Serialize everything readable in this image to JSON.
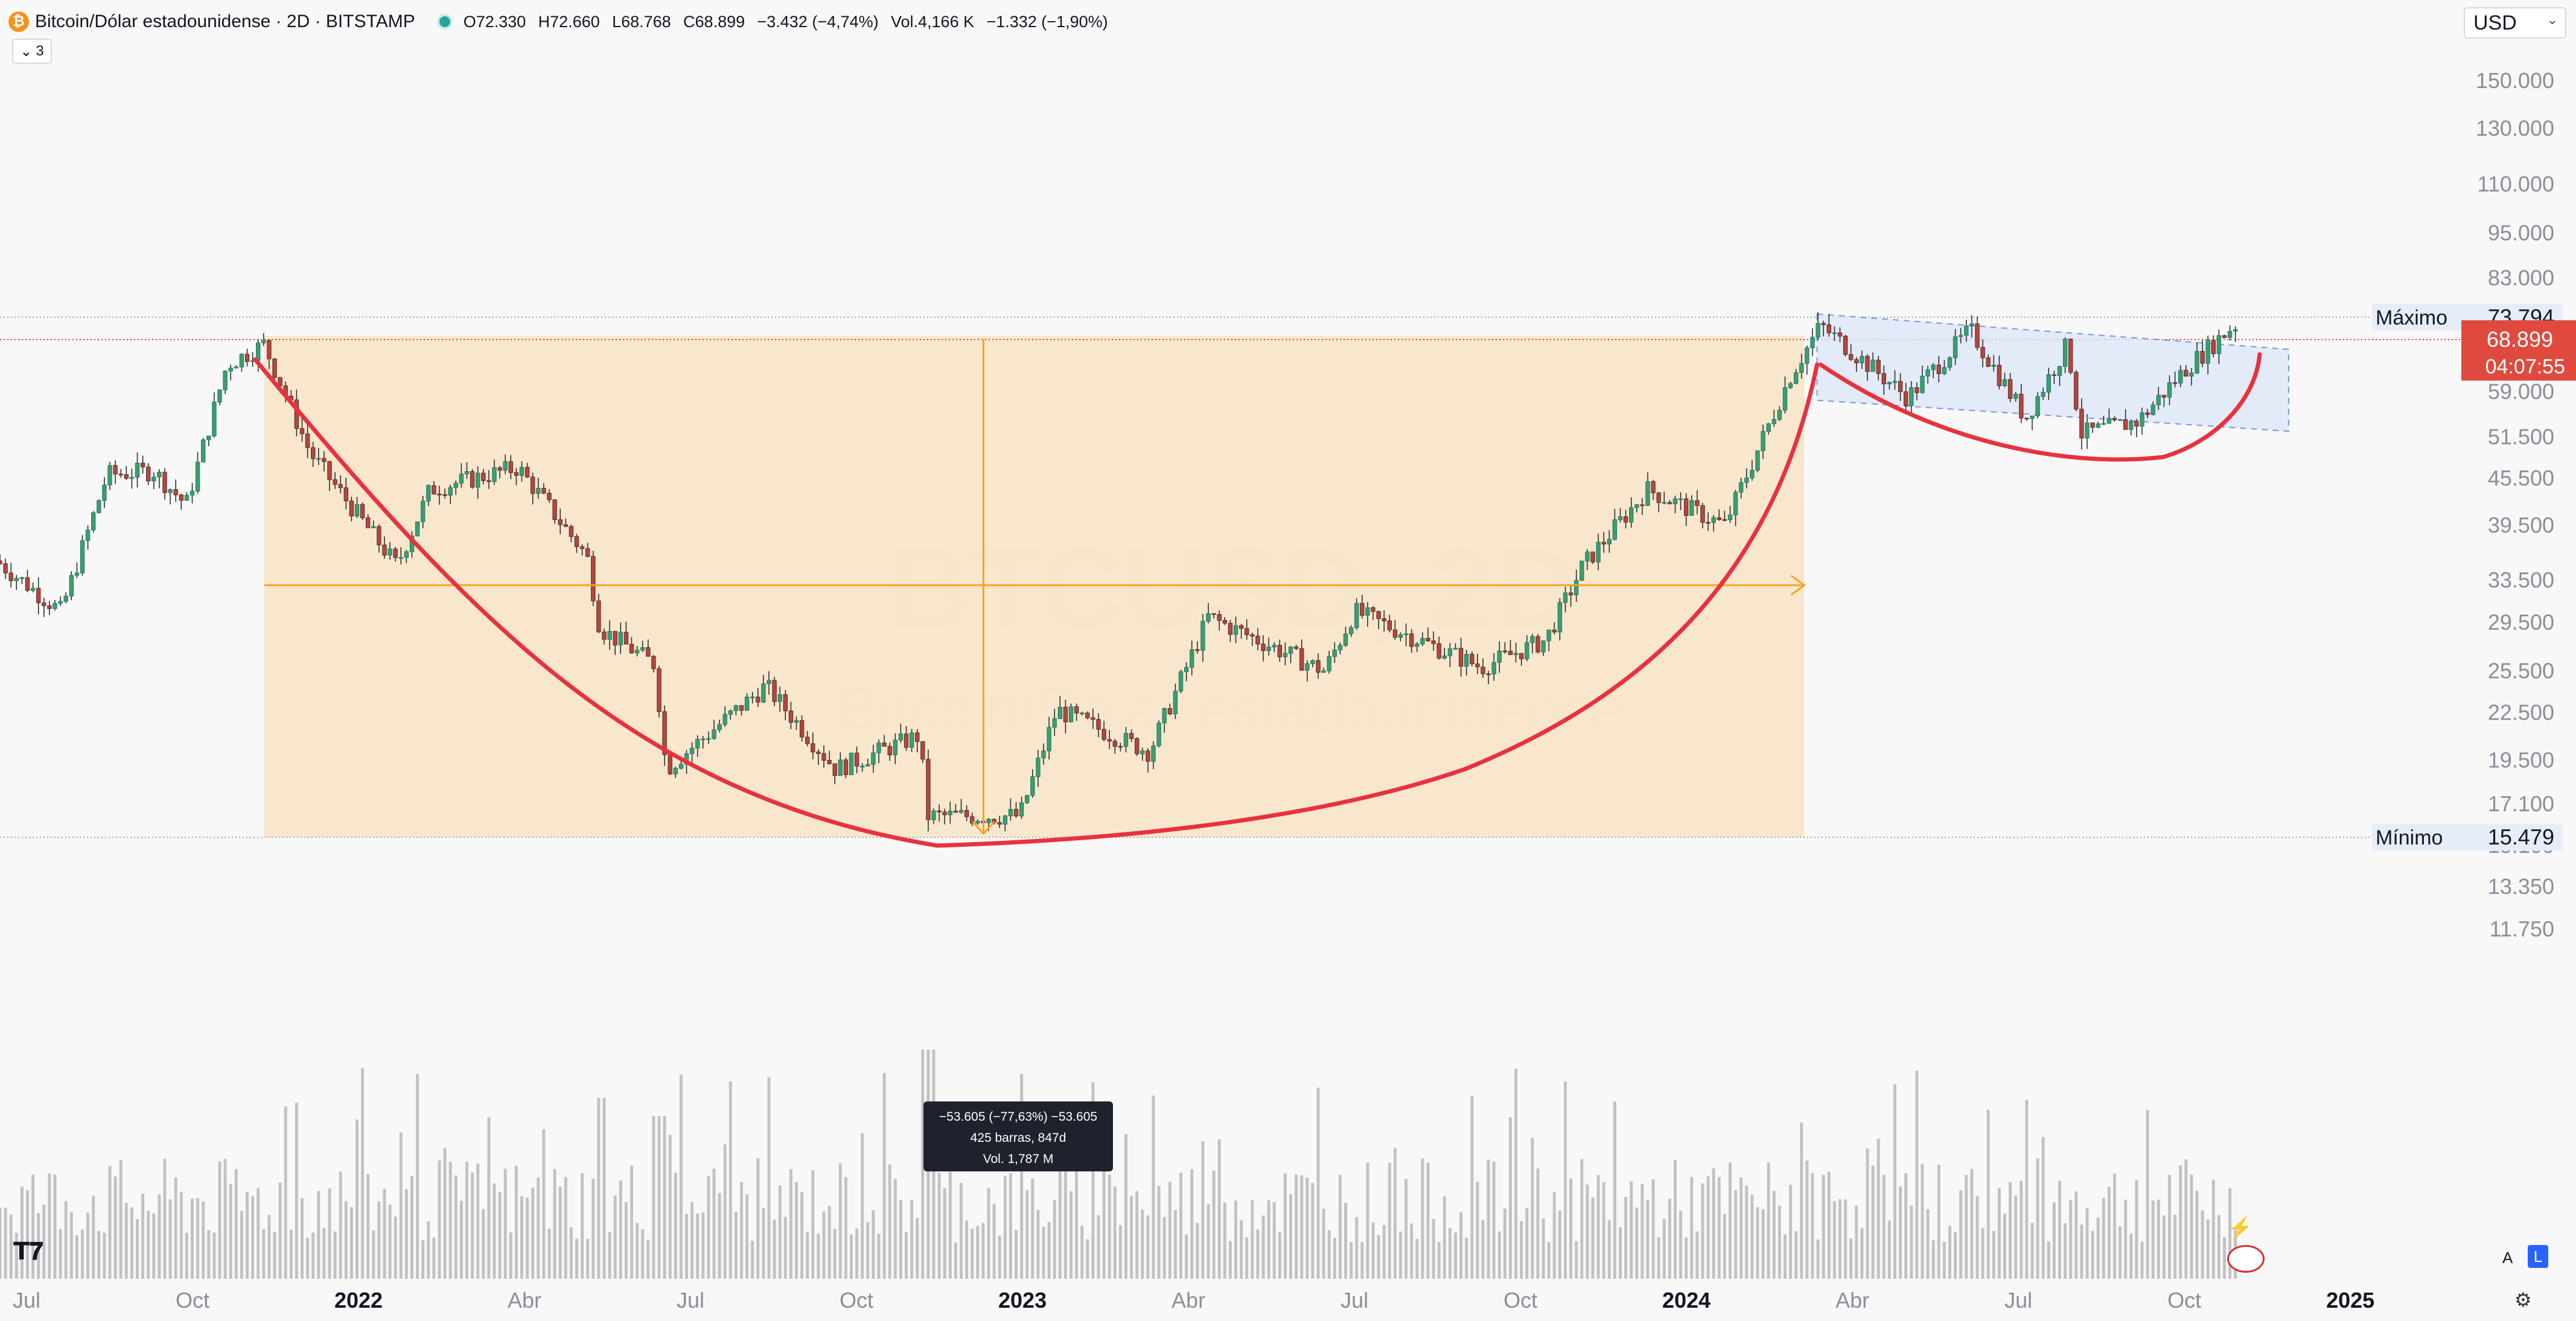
{
  "legend": {
    "symbol_icon": "bitcoin-icon",
    "title": "Bitcoin/Dólar estadounidense · 2D · BITSTAMP",
    "open": "O72.330",
    "high": "H72.660",
    "low": "L68.768",
    "close": "C68.899",
    "change": "−3.432 (−4,74%)",
    "volume": "Vol.4,166 K",
    "volume_change": "−1.332 (−1,90%)",
    "collapsed_count": "3"
  },
  "currency": {
    "value": "USD"
  },
  "watermark": {
    "symbol": "BTCUSD, 2D",
    "name": "Bitcoin/Dólar estadounidense"
  },
  "colors": {
    "up": "#26a69a",
    "down": "#ef5350",
    "cup": "#e8323f",
    "range_box": "#f8e4c8",
    "measure": "#f7a125",
    "channel": "#4e79e0",
    "price_badge": "#e04a3e"
  },
  "chart_data": {
    "type": "candlestick",
    "y_scale": "log",
    "y_ticks": [
      "150.000",
      "130.000",
      "110.000",
      "95.000",
      "83.000",
      "59.000",
      "51.500",
      "45.500",
      "39.500",
      "33.500",
      "29.500",
      "25.500",
      "22.500",
      "19.500",
      "17.100",
      "15.100",
      "13.350",
      "11.750"
    ],
    "x_ticks": [
      "Jul",
      "Oct",
      "2022",
      "Abr",
      "Jul",
      "Oct",
      "2023",
      "Abr",
      "Jul",
      "Oct",
      "2024",
      "Abr",
      "Jul",
      "Oct",
      "2025"
    ],
    "x_ticks_bold": [
      "2022",
      "2023",
      "2024",
      "2025"
    ],
    "x_range": [
      "2021-06",
      "2025-01"
    ],
    "ylim": [
      11000,
      160000
    ],
    "series_anchors": [
      {
        "date": "2021-06-15",
        "close": 35500
      },
      {
        "date": "2021-07-20",
        "close": 30500
      },
      {
        "date": "2021-08-15",
        "close": 46000
      },
      {
        "date": "2021-09-10",
        "close": 46500
      },
      {
        "date": "2021-09-28",
        "close": 42000
      },
      {
        "date": "2021-10-20",
        "close": 64000
      },
      {
        "date": "2021-11-10",
        "close": 68000
      },
      {
        "date": "2021-12-05",
        "close": 49000
      },
      {
        "date": "2022-01-22",
        "close": 35000
      },
      {
        "date": "2022-02-10",
        "close": 44000
      },
      {
        "date": "2022-03-28",
        "close": 47000
      },
      {
        "date": "2022-05-05",
        "close": 36000
      },
      {
        "date": "2022-05-12",
        "close": 29000
      },
      {
        "date": "2022-06-12",
        "close": 26000
      },
      {
        "date": "2022-06-18",
        "close": 19000
      },
      {
        "date": "2022-08-12",
        "close": 24400
      },
      {
        "date": "2022-09-20",
        "close": 19000
      },
      {
        "date": "2022-11-05",
        "close": 21000
      },
      {
        "date": "2022-11-10",
        "close": 16500
      },
      {
        "date": "2022-12-30",
        "close": 16500
      },
      {
        "date": "2023-01-20",
        "close": 22700
      },
      {
        "date": "2023-03-10",
        "close": 20000
      },
      {
        "date": "2023-04-12",
        "close": 30000
      },
      {
        "date": "2023-06-15",
        "close": 25500
      },
      {
        "date": "2023-07-01",
        "close": 30500
      },
      {
        "date": "2023-09-10",
        "close": 25800
      },
      {
        "date": "2023-10-15",
        "close": 28000
      },
      {
        "date": "2023-11-05",
        "close": 35000
      },
      {
        "date": "2023-12-10",
        "close": 44000
      },
      {
        "date": "2024-01-22",
        "close": 39500
      },
      {
        "date": "2024-02-28",
        "close": 62000
      },
      {
        "date": "2024-03-14",
        "close": 72000
      },
      {
        "date": "2024-05-01",
        "close": 58000
      },
      {
        "date": "2024-06-05",
        "close": 71000
      },
      {
        "date": "2024-07-05",
        "close": 54500
      },
      {
        "date": "2024-07-28",
        "close": 68000
      },
      {
        "date": "2024-08-05",
        "close": 52000
      },
      {
        "date": "2024-09-06",
        "close": 54000
      },
      {
        "date": "2024-10-01",
        "close": 63000
      },
      {
        "date": "2024-10-29",
        "close": 72300
      },
      {
        "date": "2024-11-01",
        "close": 68899
      }
    ],
    "annotations": {
      "high_label": "Máximo",
      "high_value": "73.794",
      "low_label": "Mínimo",
      "low_value": "15.479",
      "last_price": "68.899",
      "countdown": "04:07:55",
      "measure_line1": "−53.605 (−77,63%) −53.605",
      "measure_line2": "425 barras, 847d",
      "measure_line3": "Vol. 1,787 M"
    }
  },
  "bottom": {
    "auto_label": "A",
    "log_label": "L"
  }
}
